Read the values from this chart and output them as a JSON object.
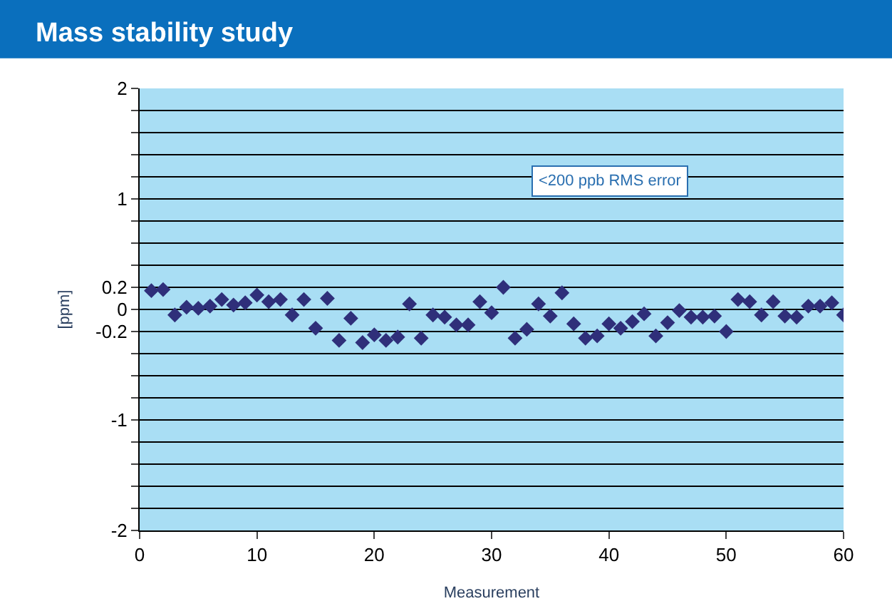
{
  "chart_data": {
    "type": "scatter",
    "title": "Mass stability study",
    "xlabel": "Measurement",
    "ylabel": "[ppm]",
    "x": [
      1,
      2,
      3,
      4,
      5,
      6,
      7,
      8,
      9,
      10,
      11,
      12,
      13,
      14,
      15,
      16,
      17,
      18,
      19,
      20,
      21,
      22,
      23,
      24,
      25,
      26,
      27,
      28,
      29,
      30,
      31,
      32,
      33,
      34,
      35,
      36,
      37,
      38,
      39,
      40,
      41,
      42,
      43,
      44,
      45,
      46,
      47,
      48,
      49,
      50,
      51,
      52,
      53,
      54,
      55,
      56,
      57,
      58,
      59,
      60
    ],
    "series": [
      {
        "color": "#2f2f7a",
        "values": [
          0.17,
          0.18,
          -0.05,
          0.02,
          0.01,
          0.03,
          0.09,
          0.04,
          0.06,
          0.13,
          0.07,
          0.09,
          -0.05,
          0.09,
          -0.17,
          0.1,
          -0.28,
          -0.08,
          -0.3,
          -0.23,
          -0.28,
          -0.25,
          0.05,
          -0.26,
          -0.05,
          -0.07,
          -0.14,
          -0.14,
          0.07,
          -0.03,
          0.2,
          -0.26,
          -0.18,
          0.05,
          -0.06,
          0.15,
          -0.13,
          -0.26,
          -0.24,
          -0.13,
          -0.17,
          -0.11,
          -0.04,
          -0.24,
          -0.12,
          -0.01,
          -0.07,
          -0.07,
          -0.06,
          -0.2,
          0.09,
          0.07,
          -0.05,
          0.07,
          -0.06,
          -0.07,
          0.03,
          0.03,
          0.06,
          -0.05
        ]
      }
    ],
    "annotations": [
      "<200 ppb RMS error"
    ],
    "xlim": [
      0,
      60
    ],
    "xticks": [
      0,
      10,
      20,
      30,
      40,
      50,
      60
    ],
    "ylim": [
      -2,
      2
    ],
    "yticks": [
      -2,
      {
        "value": -1.8,
        "label": null
      },
      {
        "value": -1.6,
        "label": null
      },
      {
        "value": -1.4,
        "label": null
      },
      {
        "value": -1.2,
        "label": null
      },
      -1,
      {
        "value": -0.8,
        "label": null
      },
      {
        "value": -0.6,
        "label": null
      },
      {
        "value": -0.4,
        "label": null
      },
      -0.2,
      0,
      0.2,
      {
        "value": 0.4,
        "label": null
      },
      {
        "value": 0.6,
        "label": null
      },
      {
        "value": 0.8,
        "label": null
      },
      1,
      {
        "value": 1.2,
        "label": null
      },
      {
        "value": 1.4,
        "label": null
      },
      {
        "value": 1.6,
        "label": null
      },
      {
        "value": 1.8,
        "label": null
      },
      2
    ],
    "grid": "y",
    "marker": "diamond"
  }
}
